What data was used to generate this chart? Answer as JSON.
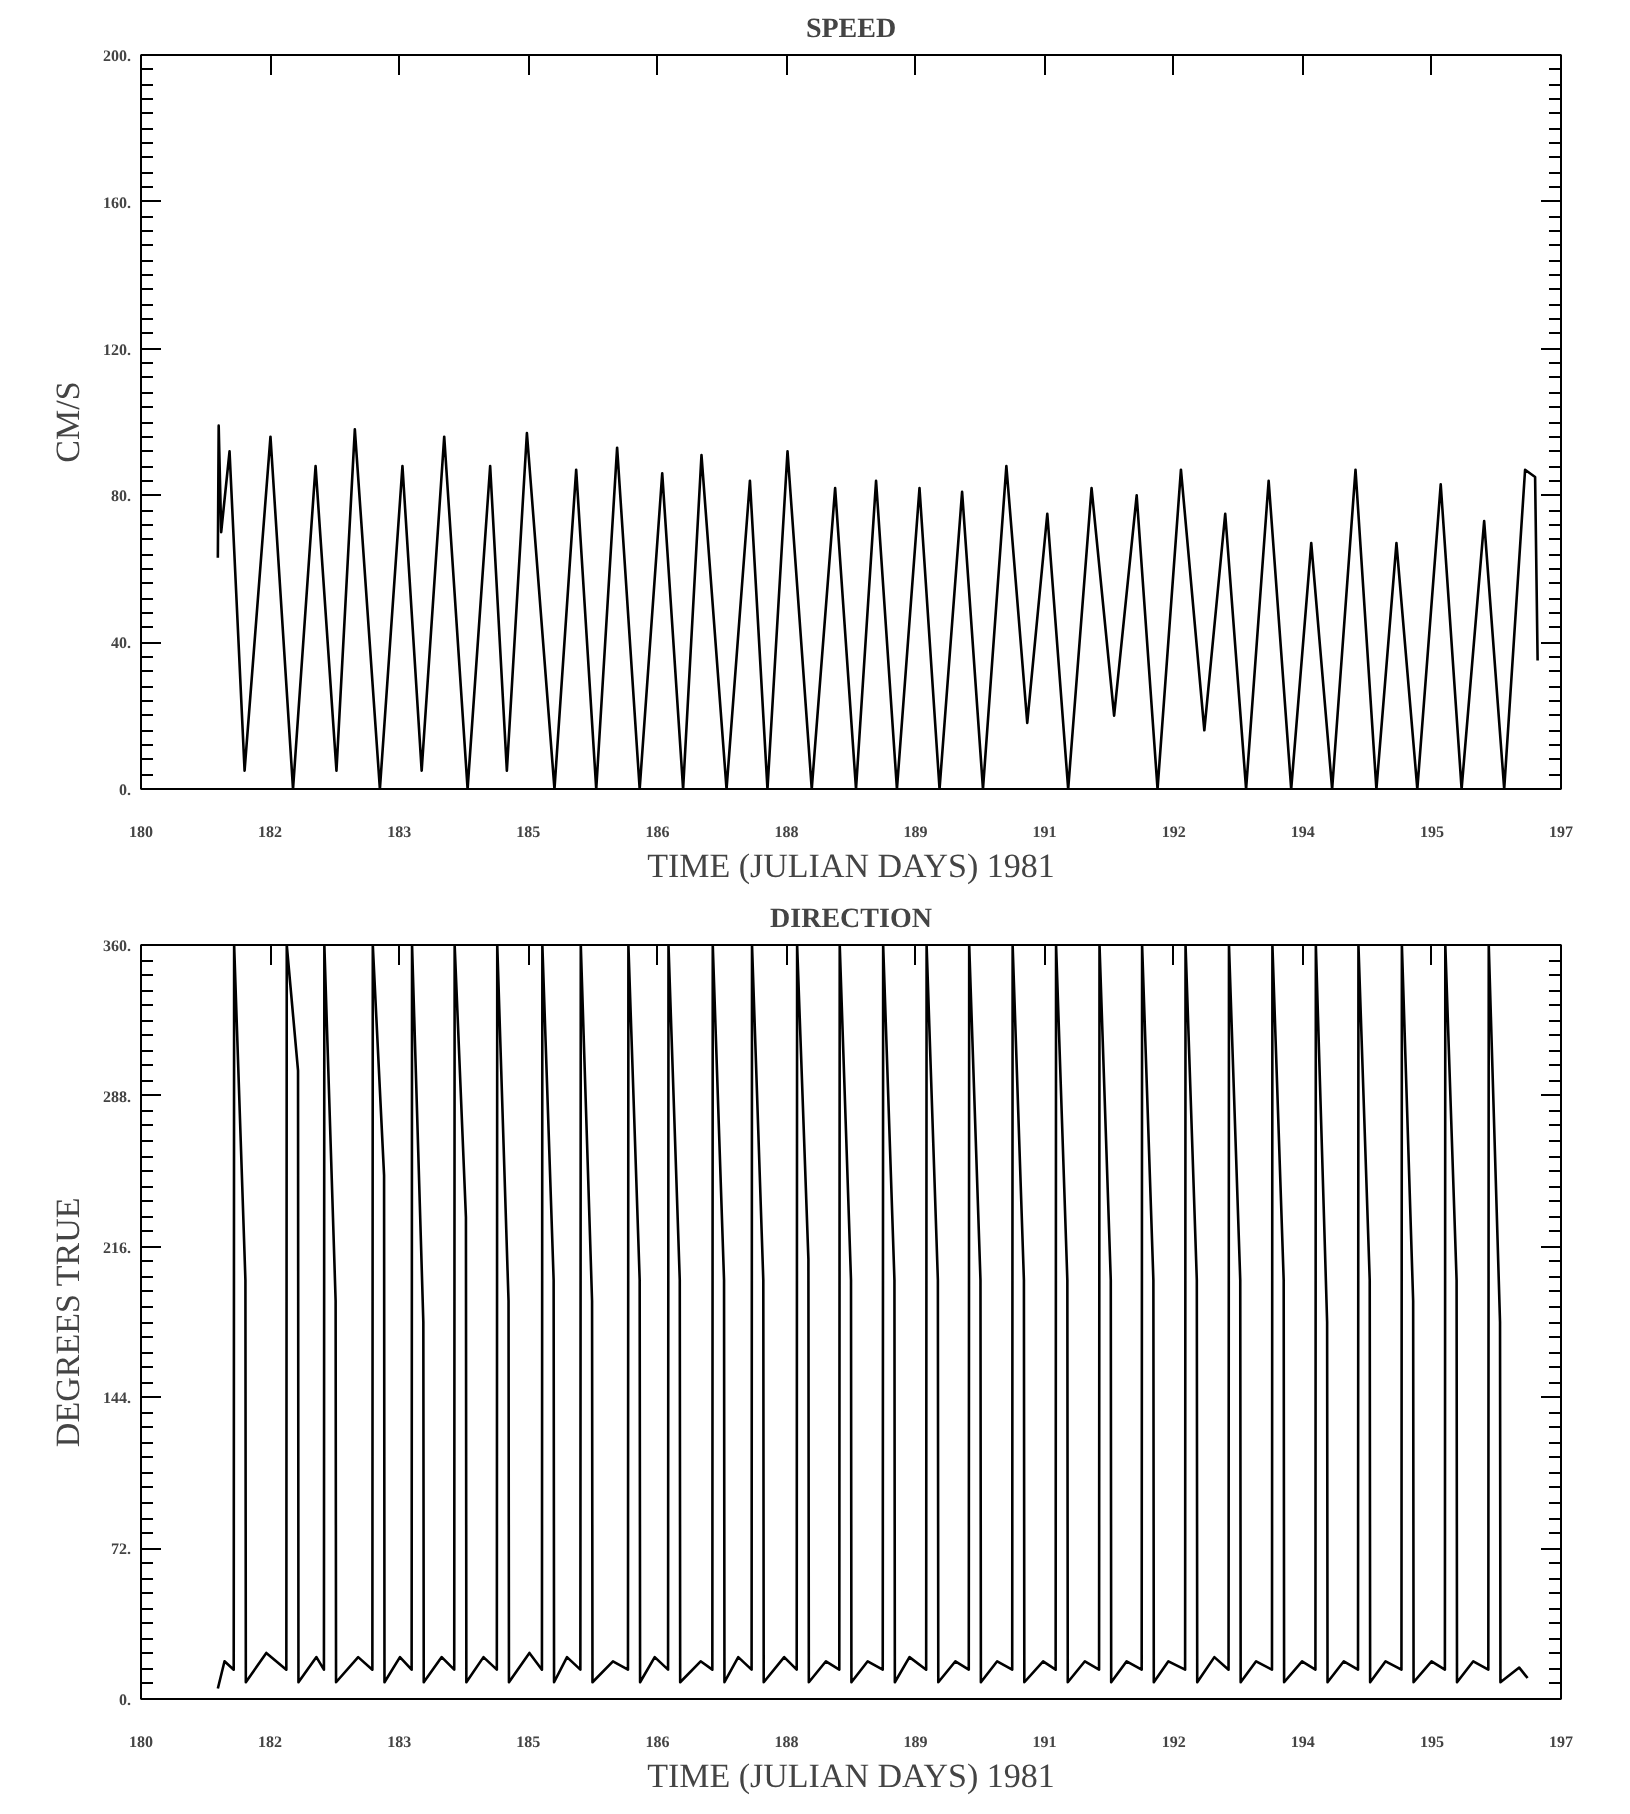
{
  "chart_data": [
    {
      "type": "line",
      "title": "SPEED",
      "xlabel": "TIME (JULIAN DAYS) 1981",
      "ylabel": "CM/S",
      "marker": "none",
      "line_style": "solid",
      "xlim": [
        180,
        197
      ],
      "ylim": [
        0,
        200
      ],
      "xticks": [
        {
          "value": 180,
          "label": "180"
        },
        {
          "value": 181.545,
          "label": "182"
        },
        {
          "value": 183.091,
          "label": "183"
        },
        {
          "value": 184.636,
          "label": "185"
        },
        {
          "value": 186.182,
          "label": "186"
        },
        {
          "value": 187.727,
          "label": "188"
        },
        {
          "value": 189.273,
          "label": "189"
        },
        {
          "value": 190.818,
          "label": "191"
        },
        {
          "value": 192.364,
          "label": "192"
        },
        {
          "value": 193.909,
          "label": "194"
        },
        {
          "value": 195.455,
          "label": "195"
        },
        {
          "value": 197,
          "label": "197"
        }
      ],
      "yticks": [
        {
          "value": 0,
          "label": "0."
        },
        {
          "value": 40,
          "label": "40."
        },
        {
          "value": 80,
          "label": "80."
        },
        {
          "value": 120,
          "label": "120."
        },
        {
          "value": 160,
          "label": "160."
        },
        {
          "value": 200,
          "label": "200."
        }
      ],
      "series": [
        {
          "color": "#000000",
          "x": [
            180.92,
            180.93,
            180.96,
            181.06,
            181.24,
            181.55,
            181.82,
            182.09,
            182.34,
            182.56,
            182.86,
            183.13,
            183.36,
            183.63,
            183.91,
            184.18,
            184.38,
            184.62,
            184.95,
            185.21,
            185.45,
            185.7,
            185.97,
            186.24,
            186.49,
            186.71,
            187.01,
            187.29,
            187.5,
            187.74,
            188.03,
            188.31,
            188.56,
            188.8,
            189.05,
            189.32,
            189.56,
            189.83,
            190.08,
            190.36,
            190.61,
            190.85,
            191.1,
            191.38,
            191.65,
            191.92,
            192.17,
            192.45,
            192.73,
            192.98,
            193.23,
            193.5,
            193.77,
            194.01,
            194.26,
            194.54,
            194.79,
            195.03,
            195.28,
            195.56,
            195.81,
            196.08,
            196.32,
            196.57,
            196.69,
            196.72
          ],
          "values": [
            63,
            99,
            70,
            92,
            5,
            96,
            0,
            88,
            5,
            98,
            0,
            88,
            5,
            96,
            0,
            88,
            5,
            97,
            0,
            87,
            0,
            93,
            0,
            86,
            0,
            91,
            0,
            84,
            0,
            92,
            0,
            82,
            0,
            84,
            0,
            82,
            0,
            81,
            0,
            88,
            18,
            75,
            0,
            82,
            20,
            80,
            0,
            87,
            16,
            75,
            0,
            84,
            0,
            67,
            0,
            87,
            0,
            67,
            0,
            83,
            0,
            73,
            0,
            87,
            85,
            35
          ]
        }
      ]
    },
    {
      "type": "line",
      "title": "DIRECTION",
      "xlabel": "TIME (JULIAN DAYS) 1981",
      "ylabel": "DEGREES TRUE",
      "marker": "none",
      "line_style": "solid",
      "xlim": [
        180,
        197
      ],
      "ylim": [
        0,
        360
      ],
      "xticks": [
        {
          "value": 180,
          "label": "180"
        },
        {
          "value": 181.545,
          "label": "182"
        },
        {
          "value": 183.091,
          "label": "183"
        },
        {
          "value": 184.636,
          "label": "185"
        },
        {
          "value": 186.182,
          "label": "186"
        },
        {
          "value": 187.727,
          "label": "188"
        },
        {
          "value": 189.273,
          "label": "189"
        },
        {
          "value": 190.818,
          "label": "191"
        },
        {
          "value": 192.364,
          "label": "192"
        },
        {
          "value": 193.909,
          "label": "194"
        },
        {
          "value": 195.455,
          "label": "195"
        },
        {
          "value": 197,
          "label": "197"
        }
      ],
      "yticks": [
        {
          "value": 0,
          "label": "0."
        },
        {
          "value": 72,
          "label": "72."
        },
        {
          "value": 144,
          "label": "144."
        },
        {
          "value": 216,
          "label": "216."
        },
        {
          "value": 288,
          "label": "288."
        },
        {
          "value": 360,
          "label": "360."
        }
      ],
      "series": [
        {
          "color": "#000000",
          "x": [
            180.92,
            181.0,
            181.11,
            181.115,
            181.25,
            181.255,
            181.5,
            181.74,
            181.745,
            181.88,
            181.885,
            182.1,
            182.19,
            182.195,
            182.33,
            182.335,
            182.6,
            182.77,
            182.775,
            182.91,
            182.915,
            183.1,
            183.24,
            183.245,
            183.38,
            183.385,
            183.6,
            183.75,
            183.755,
            183.89,
            183.895,
            184.1,
            184.26,
            184.265,
            184.4,
            184.405,
            184.65,
            184.8,
            184.805,
            184.94,
            184.945,
            185.1,
            185.26,
            185.265,
            185.4,
            185.405,
            185.65,
            185.83,
            185.835,
            185.97,
            185.975,
            186.15,
            186.31,
            186.315,
            186.45,
            186.455,
            186.7,
            186.84,
            186.845,
            186.98,
            186.985,
            187.15,
            187.31,
            187.315,
            187.45,
            187.455,
            187.7,
            187.85,
            187.855,
            187.99,
            187.995,
            188.2,
            188.36,
            188.365,
            188.5,
            188.505,
            188.7,
            188.88,
            188.885,
            189.02,
            189.025,
            189.2,
            189.4,
            189.405,
            189.54,
            189.545,
            189.75,
            189.91,
            189.915,
            190.05,
            190.055,
            190.25,
            190.43,
            190.435,
            190.57,
            190.575,
            190.8,
            190.95,
            190.955,
            191.09,
            191.095,
            191.3,
            191.47,
            191.475,
            191.61,
            191.615,
            191.8,
            191.98,
            191.985,
            192.12,
            192.125,
            192.3,
            192.5,
            192.505,
            192.64,
            192.645,
            192.85,
            193.02,
            193.025,
            193.16,
            193.165,
            193.35,
            193.54,
            193.545,
            193.68,
            193.685,
            193.9,
            194.06,
            194.065,
            194.2,
            194.205,
            194.4,
            194.57,
            194.575,
            194.71,
            194.715,
            194.9,
            195.09,
            195.095,
            195.23,
            195.235,
            195.45,
            195.61,
            195.615,
            195.75,
            195.755,
            195.95,
            196.13,
            196.135,
            196.27,
            196.275,
            196.5,
            196.6
          ],
          "values": [
            5,
            18,
            14,
            360,
            200,
            8,
            22,
            14,
            360,
            300,
            8,
            20,
            14,
            360,
            190,
            8,
            20,
            14,
            360,
            250,
            8,
            20,
            14,
            360,
            180,
            8,
            20,
            14,
            360,
            230,
            8,
            20,
            14,
            360,
            190,
            8,
            22,
            14,
            360,
            200,
            8,
            20,
            14,
            360,
            190,
            8,
            18,
            14,
            360,
            200,
            8,
            20,
            14,
            360,
            200,
            8,
            18,
            14,
            360,
            200,
            8,
            20,
            14,
            360,
            200,
            8,
            20,
            14,
            360,
            210,
            8,
            18,
            14,
            360,
            200,
            8,
            18,
            14,
            360,
            200,
            8,
            20,
            14,
            360,
            200,
            8,
            18,
            14,
            360,
            200,
            8,
            18,
            14,
            360,
            200,
            8,
            18,
            14,
            360,
            200,
            8,
            18,
            14,
            360,
            200,
            8,
            18,
            14,
            360,
            200,
            8,
            18,
            14,
            360,
            200,
            8,
            20,
            14,
            360,
            200,
            8,
            18,
            14,
            360,
            200,
            8,
            18,
            14,
            360,
            180,
            8,
            18,
            14,
            360,
            200,
            8,
            18,
            14,
            360,
            190,
            8,
            18,
            14,
            360,
            200,
            8,
            18,
            14,
            360,
            180,
            8,
            15,
            10
          ]
        }
      ]
    }
  ]
}
